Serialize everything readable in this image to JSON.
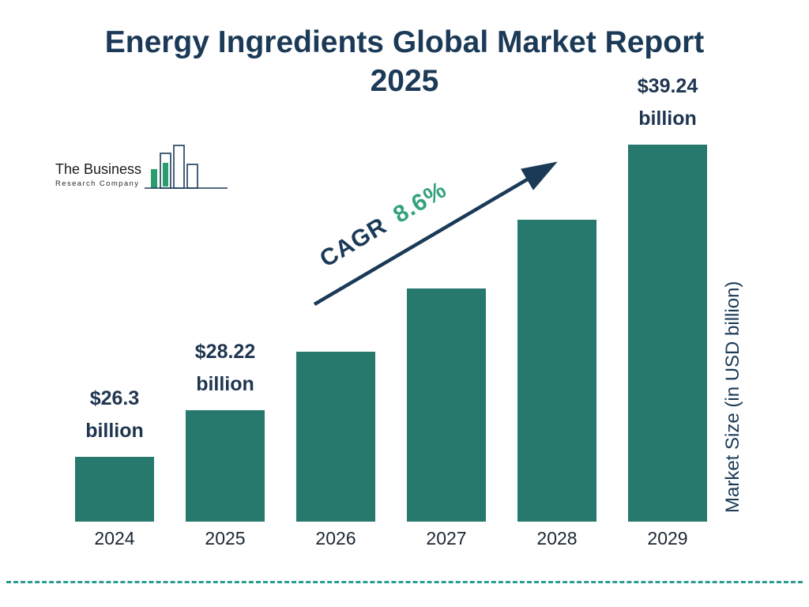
{
  "title": {
    "line1": "Energy Ingredients Global Market Report",
    "line2": "2025"
  },
  "logo": {
    "name": "The Business",
    "subname": "Research Company"
  },
  "cagr": {
    "label": "CAGR",
    "value": "8.6%"
  },
  "y_axis_label": "Market Size (in USD billion)",
  "colors": {
    "bar": "#26796c",
    "title": "#1b3a57",
    "text": "#1f3550",
    "cagr_value": "#33a17e",
    "dash": "#2a9d8f"
  },
  "chart_data": {
    "type": "bar",
    "title": "Energy Ingredients Global Market Report 2025",
    "categories": [
      "2024",
      "2025",
      "2026",
      "2027",
      "2028",
      "2029"
    ],
    "values": [
      26.3,
      28.22,
      30.65,
      33.28,
      36.14,
      39.24
    ],
    "unit": "USD billion",
    "ylabel": "Market Size (in USD billion)",
    "cagr_pct": 8.6,
    "legend": false,
    "grid": false,
    "value_labels": [
      {
        "amount": "$26.3",
        "unit": "billion"
      },
      {
        "amount": "$28.22",
        "unit": "billion"
      },
      null,
      null,
      null,
      {
        "amount": "$39.24",
        "unit": "billion"
      }
    ]
  }
}
